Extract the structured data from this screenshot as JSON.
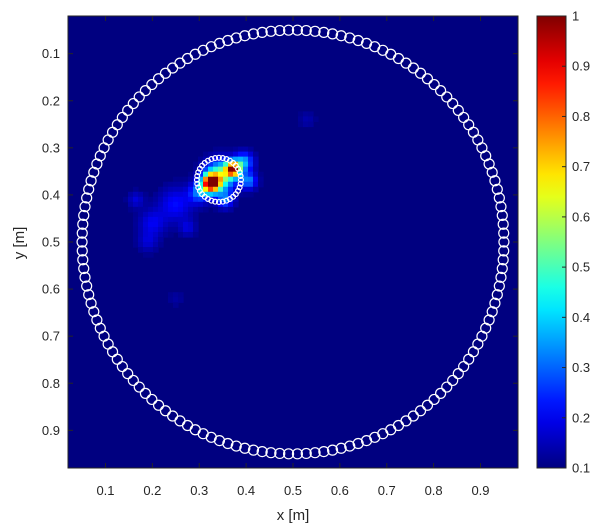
{
  "chart_data": {
    "type": "heatmap",
    "title": "",
    "xlabel": "x [m]",
    "ylabel": "y [m]",
    "xlim": [
      0.02,
      0.98
    ],
    "ylim": [
      0.02,
      0.98
    ],
    "y_direction": "reverse",
    "grid": false,
    "x_ticks": [
      0.1,
      0.2,
      0.3,
      0.4,
      0.5,
      0.6,
      0.7,
      0.8,
      0.9
    ],
    "x_tick_labels": [
      "0.1",
      "0.2",
      "0.3",
      "0.4",
      "0.5",
      "0.6",
      "0.7",
      "0.8",
      "0.9"
    ],
    "y_ticks": [
      0.1,
      0.2,
      0.3,
      0.4,
      0.5,
      0.6,
      0.7,
      0.8,
      0.9
    ],
    "y_tick_labels": [
      "0.1",
      "0.2",
      "0.3",
      "0.4",
      "0.5",
      "0.6",
      "0.7",
      "0.8",
      "0.9"
    ],
    "colormap": "jet",
    "background_value": 0.1,
    "colorbar": {
      "min": 0.1,
      "max": 1,
      "ticks": [
        0.1,
        0.2,
        0.3,
        0.4,
        0.5,
        0.6,
        0.7,
        0.8,
        0.9,
        1
      ],
      "tick_labels": [
        "0.1",
        "0.2",
        "0.3",
        "0.4",
        "0.5",
        "0.6",
        "0.7",
        "0.8",
        "0.9",
        "1"
      ]
    },
    "hotspots": [
      {
        "x": 0.325,
        "y": 0.375,
        "value": 1.0,
        "sigma": 0.013
      },
      {
        "x": 0.372,
        "y": 0.345,
        "value": 0.88,
        "sigma": 0.011
      },
      {
        "x": 0.345,
        "y": 0.36,
        "value": 0.55,
        "sigma": 0.022
      },
      {
        "x": 0.395,
        "y": 0.33,
        "value": 0.36,
        "sigma": 0.014
      },
      {
        "x": 0.405,
        "y": 0.37,
        "value": 0.33,
        "sigma": 0.012
      },
      {
        "x": 0.3,
        "y": 0.395,
        "value": 0.32,
        "sigma": 0.015
      },
      {
        "x": 0.355,
        "y": 0.41,
        "value": 0.3,
        "sigma": 0.012
      },
      {
        "x": 0.25,
        "y": 0.42,
        "value": 0.22,
        "sigma": 0.025
      },
      {
        "x": 0.2,
        "y": 0.46,
        "value": 0.2,
        "sigma": 0.02
      },
      {
        "x": 0.165,
        "y": 0.41,
        "value": 0.18,
        "sigma": 0.012
      },
      {
        "x": 0.19,
        "y": 0.5,
        "value": 0.17,
        "sigma": 0.015
      },
      {
        "x": 0.275,
        "y": 0.47,
        "value": 0.18,
        "sigma": 0.012
      },
      {
        "x": 0.53,
        "y": 0.24,
        "value": 0.14,
        "sigma": 0.012
      },
      {
        "x": 0.25,
        "y": 0.62,
        "value": 0.13,
        "sigma": 0.012
      }
    ],
    "outer_boundary": {
      "center_x": 0.5,
      "center_y": 0.5,
      "radius": 0.45,
      "markers": 150,
      "marker_color": "#ffffff",
      "marker_style": "circle"
    },
    "inner_target": {
      "center_x": 0.342,
      "center_y": 0.368,
      "radius": 0.047,
      "markers": 36,
      "marker_color": "#ffffff",
      "marker_style": "circle"
    }
  }
}
